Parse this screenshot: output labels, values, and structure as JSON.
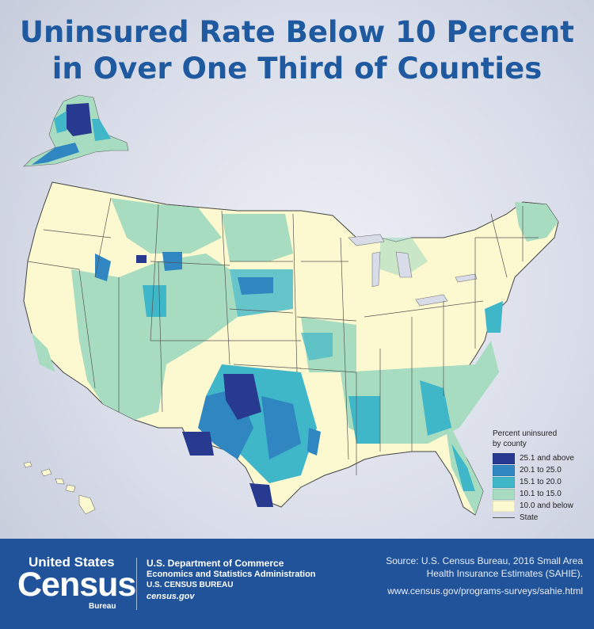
{
  "title": {
    "line1": "Uninsured Rate Below 10 Percent",
    "line2": "in Over One Third of Counties"
  },
  "legend": {
    "title_line1": "Percent uninsured",
    "title_line2": "by county",
    "items": [
      {
        "label": "25.1 and above",
        "color": "#283a8f"
      },
      {
        "label": "20.1 to 25.0",
        "color": "#2f86c1"
      },
      {
        "label": "15.1 to 20.0",
        "color": "#40b6c9"
      },
      {
        "label": "10.1 to 15.0",
        "color": "#a7dcc0"
      },
      {
        "label": "10.0 and below",
        "color": "#fcf8d0"
      }
    ],
    "state_label": "State"
  },
  "footer": {
    "logo_line1": "United States",
    "logo_line2": "Census",
    "logo_line3": "Bureau",
    "dept_line1": "U.S. Department of Commerce",
    "dept_line2": "Economics and Statistics Administration",
    "dept_line3": "U.S. CENSUS BUREAU",
    "dept_line4": "census.gov",
    "source_line1": "Source: U.S. Census Bureau, 2016 Small Area",
    "source_line2": "Health Insurance Estimates (SAHIE).",
    "source_url": "www.census.gov/programs-surveys/sahie.html"
  },
  "colors": {
    "title": "#1f5aa0",
    "footer_bg": "#20539a",
    "state_border": "#555555"
  }
}
